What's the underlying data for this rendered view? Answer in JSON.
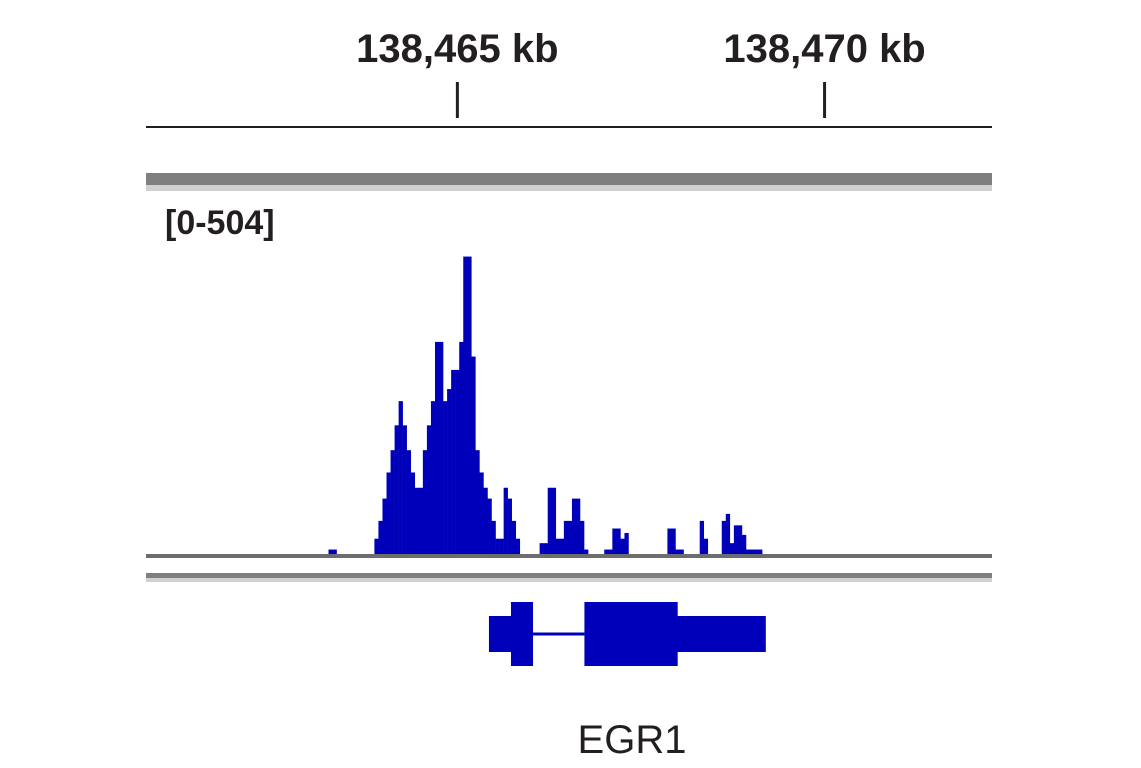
{
  "chart_data": {
    "type": "bar",
    "title": "",
    "xlabel": "",
    "ylabel": "",
    "x_unit": "kb",
    "x_range": [
      138460.76,
      138472.28
    ],
    "ylim": [
      0,
      504
    ],
    "x_ticks": [
      {
        "position": 138465,
        "label": "138,465 kb"
      },
      {
        "position": 138470,
        "label": "138,470 kb"
      }
    ],
    "data_range_label": "[0-504]",
    "bar_color": "#0000bb",
    "bin_width_kb": 0.0545,
    "series": [
      {
        "values": [
          [
            138463.245,
            7
          ],
          [
            138463.3,
            7
          ],
          [
            138463.87,
            24
          ],
          [
            138463.925,
            52
          ],
          [
            138463.98,
            87
          ],
          [
            138464.035,
            128
          ],
          [
            138464.09,
            163
          ],
          [
            138464.145,
            202
          ],
          [
            138464.2,
            240
          ],
          [
            138464.255,
            202
          ],
          [
            138464.31,
            163
          ],
          [
            138464.365,
            128
          ],
          [
            138464.42,
            104
          ],
          [
            138464.475,
            104
          ],
          [
            138464.53,
            163
          ],
          [
            138464.585,
            202
          ],
          [
            138464.64,
            240
          ],
          [
            138464.695,
            333
          ],
          [
            138464.75,
            333
          ],
          [
            138464.805,
            240
          ],
          [
            138464.86,
            259
          ],
          [
            138464.915,
            289
          ],
          [
            138464.97,
            289
          ],
          [
            138465.025,
            333
          ],
          [
            138465.08,
            467
          ],
          [
            138465.135,
            467
          ],
          [
            138465.19,
            310
          ],
          [
            138465.245,
            163
          ],
          [
            138465.3,
            128
          ],
          [
            138465.355,
            104
          ],
          [
            138465.41,
            87
          ],
          [
            138465.465,
            52
          ],
          [
            138465.52,
            24
          ],
          [
            138465.575,
            24
          ],
          [
            138465.63,
            104
          ],
          [
            138465.685,
            87
          ],
          [
            138465.74,
            52
          ],
          [
            138465.795,
            24
          ],
          [
            138465.85,
            0
          ],
          [
            138465.905,
            0
          ],
          [
            138466.12,
            17
          ],
          [
            138466.175,
            17
          ],
          [
            138466.23,
            104
          ],
          [
            138466.285,
            104
          ],
          [
            138466.34,
            24
          ],
          [
            138466.395,
            24
          ],
          [
            138466.45,
            52
          ],
          [
            138466.505,
            52
          ],
          [
            138466.56,
            87
          ],
          [
            138466.615,
            87
          ],
          [
            138466.67,
            52
          ],
          [
            138466.725,
            7
          ],
          [
            138467.0,
            7
          ],
          [
            138467.055,
            7
          ],
          [
            138467.11,
            40
          ],
          [
            138467.165,
            40
          ],
          [
            138467.22,
            24
          ],
          [
            138467.275,
            33
          ],
          [
            138467.86,
            40
          ],
          [
            138467.915,
            40
          ],
          [
            138467.97,
            7
          ],
          [
            138468.025,
            7
          ],
          [
            138468.3,
            52
          ],
          [
            138468.355,
            24
          ],
          [
            138468.6,
            52
          ],
          [
            138468.655,
            63
          ],
          [
            138468.71,
            17
          ],
          [
            138468.765,
            45
          ],
          [
            138468.82,
            45
          ],
          [
            138468.875,
            30
          ],
          [
            138468.93,
            7
          ],
          [
            138468.985,
            7
          ],
          [
            138469.04,
            7
          ],
          [
            138469.095,
            7
          ]
        ]
      }
    ]
  },
  "gene_track": {
    "gene_name": "EGR1",
    "color": "#0000bb",
    "exons": [
      {
        "start_kb": 138465.43,
        "end_kb": 138465.89,
        "kind": "utr"
      },
      {
        "start_kb": 138465.73,
        "end_kb": 138466.03,
        "kind": "coding"
      },
      {
        "start_kb": 138466.73,
        "end_kb": 138468.0,
        "kind": "coding"
      },
      {
        "start_kb": 138467.99,
        "end_kb": 138469.2,
        "kind": "utr"
      }
    ],
    "introns": [
      {
        "start_kb": 138466.03,
        "end_kb": 138466.73
      }
    ]
  }
}
